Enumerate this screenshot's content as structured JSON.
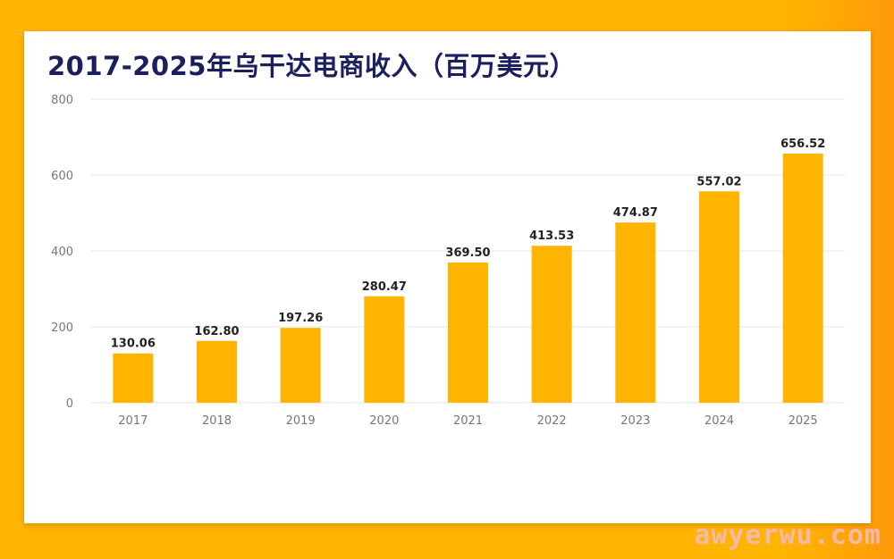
{
  "watermark": "awyerwu.com",
  "colors": {
    "bar": "#FFB400",
    "grid": "#e4e4e4",
    "tick": "#777777",
    "label": "#222222",
    "title": "#1b1f5e"
  },
  "chart_data": {
    "type": "bar",
    "title": "2017-2025年乌干达电商收入（百万美元）",
    "xlabel": "",
    "ylabel": "",
    "ylim": [
      0,
      800
    ],
    "yticks": [
      0,
      200,
      400,
      600,
      800
    ],
    "grid": true,
    "categories": [
      "2017",
      "2018",
      "2019",
      "2020",
      "2021",
      "2022",
      "2023",
      "2024",
      "2025"
    ],
    "values": [
      130.06,
      162.8,
      197.26,
      280.47,
      369.5,
      413.53,
      474.87,
      557.02,
      656.52
    ],
    "data_labels": [
      "130.06",
      "162.80",
      "197.26",
      "280.47",
      "369.50",
      "413.53",
      "474.87",
      "557.02",
      "656.52"
    ]
  }
}
